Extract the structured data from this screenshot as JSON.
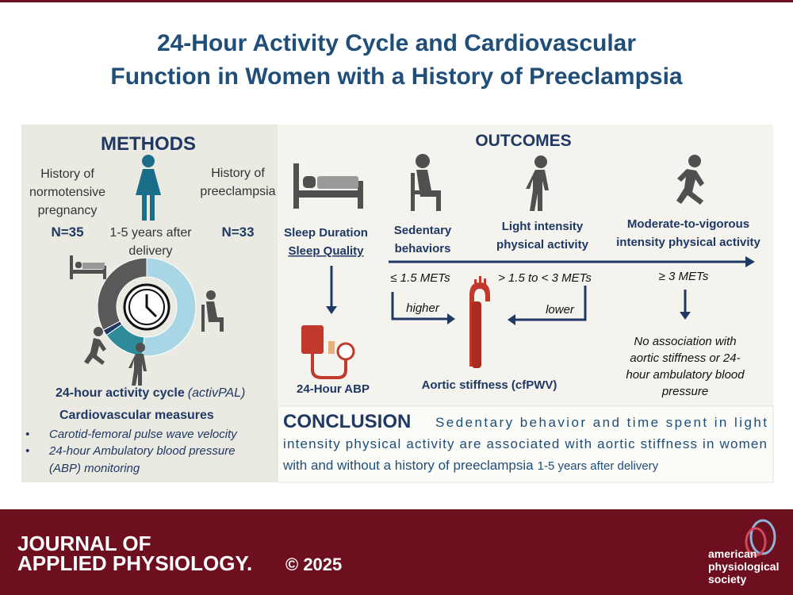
{
  "header": {
    "title_lines": [
      "24-Hour Activity Cycle and Cardiovascular",
      "Function in Women with a History of Preeclampsia"
    ]
  },
  "methods": {
    "heading": "METHODS",
    "group_left": {
      "label_lines": [
        "History of",
        "normotensive",
        "pregnancy"
      ],
      "n": "N=35"
    },
    "timing_lines": [
      "1-5 years after",
      "delivery"
    ],
    "group_right": {
      "label_lines": [
        "History of",
        "preeclampsia"
      ],
      "n": "N=33"
    },
    "activity_cycle": "24-hour activity cycle",
    "device": "(activPAL)",
    "measures_heading": "Cardiovascular measures",
    "bullets": [
      [
        "Carotid-femoral pulse wave velocity"
      ],
      [
        "24-hour Ambulatory blood pressure",
        "(ABP) monitoring"
      ]
    ]
  },
  "outcomes": {
    "heading": "OUTCOMES",
    "sleep": {
      "lines": [
        "Sleep Duration",
        "Sleep Quality"
      ],
      "result": "24-Hour ABP"
    },
    "sedentary": {
      "label_lines": [
        "Sedentary",
        "behaviors"
      ],
      "mets": "≤ 1.5 METs",
      "effect": "higher"
    },
    "light": {
      "label_lines": [
        "Light intensity",
        "physical activity"
      ],
      "mets": "> 1.5 to < 3 METs",
      "effect": "lower"
    },
    "mvpa": {
      "label_lines": [
        "Moderate-to-vigorous",
        "intensity physical activity"
      ],
      "mets": "≥ 3 METs",
      "result_lines": [
        "No association with",
        "aortic stiffness or 24-",
        "hour ambulatory blood",
        "pressure"
      ]
    },
    "aortic": "Aortic stiffness (cfPWV)"
  },
  "conclusion": {
    "heading": "CONCLUSION",
    "lines": [
      "Sedentary behavior and time spent in light",
      "intensity physical activity are associated with aortic stiffness in women",
      "with and without a history of preeclampsia"
    ],
    "tail": "1-5 years after delivery"
  },
  "footer": {
    "journal_lines": [
      "JOURNAL OF",
      "APPLIED PHYSIOLOGY."
    ],
    "copyright": "© 2025",
    "society_lines": [
      "american",
      "physiological",
      "society"
    ]
  }
}
